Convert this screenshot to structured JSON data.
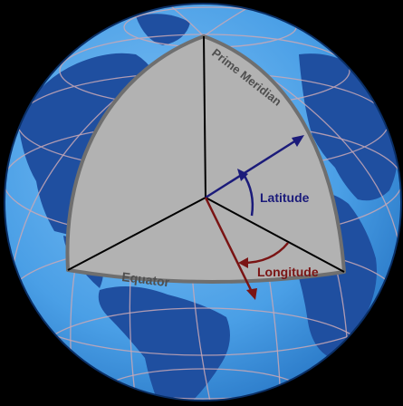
{
  "labels": {
    "prime_meridian": "Prime Meridian",
    "latitude": "Latitude",
    "longitude": "Longitude",
    "equator": "Equator"
  },
  "colors": {
    "background": "#000000",
    "ocean": "#4a9fe6",
    "land": "#1f4fa0",
    "grid": "#c9a8b6",
    "wedge": "#b2b2b2",
    "wedge_edge": "#6f6f6f",
    "latitude": "#1b1b7a",
    "longitude": "#7a1414",
    "label_gray": "#4f4f4f"
  }
}
